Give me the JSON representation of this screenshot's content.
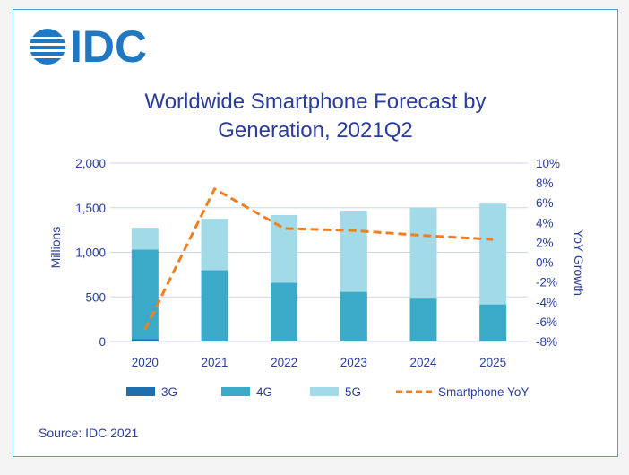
{
  "logo": {
    "text": "IDC"
  },
  "chart_data": {
    "type": "bar",
    "title": "Worldwide Smartphone Forecast by Generation, 2021Q2",
    "title_lines": [
      "Worldwide Smartphone Forecast by",
      "Generation, 2021Q2"
    ],
    "categories": [
      "2020",
      "2021",
      "2022",
      "2023",
      "2024",
      "2025"
    ],
    "stacked": true,
    "series": [
      {
        "name": "3G",
        "type": "bar",
        "axis": "left",
        "color": "#1f6fae",
        "values": [
          25,
          5,
          3,
          2,
          1,
          1
        ]
      },
      {
        "name": "4G",
        "type": "bar",
        "axis": "left",
        "color": "#3aaac8",
        "values": [
          1005,
          795,
          655,
          555,
          480,
          415
        ]
      },
      {
        "name": "5G",
        "type": "bar",
        "axis": "left",
        "color": "#a2dae8",
        "values": [
          245,
          575,
          760,
          910,
          1020,
          1130
        ]
      },
      {
        "name": "Smartphone YoY",
        "type": "line",
        "axis": "right",
        "style": "dashed",
        "color": "#f07f1f",
        "values": [
          -6.8,
          7.4,
          3.4,
          3.2,
          2.7,
          2.3
        ]
      }
    ],
    "ylabel": "Millions",
    "ylim": [
      0,
      2000
    ],
    "yticks": [
      "0",
      "500",
      "1,000",
      "1,500",
      "2,000"
    ],
    "y2label": "YoY Growth",
    "y2lim": [
      -8,
      10
    ],
    "y2ticks": [
      "-8%",
      "-6%",
      "-4%",
      "-2%",
      "0%",
      "2%",
      "4%",
      "6%",
      "8%",
      "10%"
    ],
    "grid": true,
    "legend_position": "bottom"
  },
  "source": "Source: IDC 2021"
}
